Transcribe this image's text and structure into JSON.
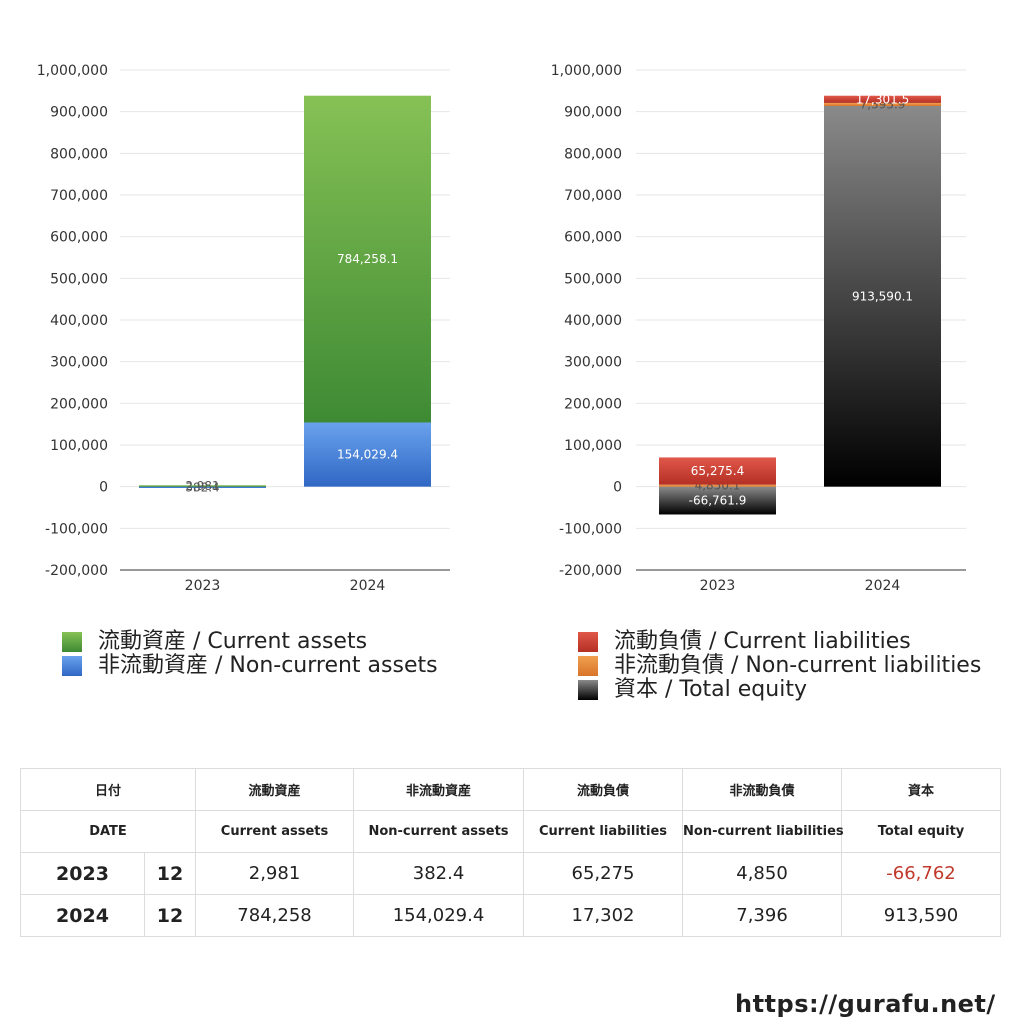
{
  "colors": {
    "current_assets": [
      "#86c155",
      "#3e8a34"
    ],
    "non_current_assets": [
      "#6aa2ee",
      "#2f67c4"
    ],
    "current_liabilities": [
      "#e0584a",
      "#b42f24"
    ],
    "non_current_liabilities": [
      "#f0a050",
      "#d9742a"
    ],
    "total_equity": [
      "#8a8a8a",
      "#000000"
    ],
    "negative_text": "#c0392b"
  },
  "chart_data": [
    {
      "type": "bar",
      "stacked": true,
      "categories": [
        "2023",
        "2024"
      ],
      "ylim": [
        -200000,
        1000000
      ],
      "yticks": [
        1000000,
        900000,
        800000,
        700000,
        600000,
        500000,
        400000,
        300000,
        200000,
        100000,
        0,
        -100000,
        -200000
      ],
      "ytick_labels": [
        "1,000,000",
        "900,000",
        "800,000",
        "700,000",
        "600,000",
        "500,000",
        "400,000",
        "300,000",
        "200,000",
        "100,000",
        "0",
        "-100,000",
        "-200,000"
      ],
      "grid": true,
      "legend_position": "bottom",
      "series": [
        {
          "name": "非流動資産 / Non-current assets",
          "key": "non_current_assets",
          "values": [
            382.4,
            154029.4
          ],
          "labels": [
            "382.4",
            "154,029.4"
          ]
        },
        {
          "name": "流動資産 / Current assets",
          "key": "current_assets",
          "values": [
            2981,
            784258.1
          ],
          "labels": [
            "2,981",
            "784,258.1"
          ]
        }
      ]
    },
    {
      "type": "bar",
      "stacked": true,
      "categories": [
        "2023",
        "2024"
      ],
      "ylim": [
        -200000,
        1000000
      ],
      "yticks": [
        1000000,
        900000,
        800000,
        700000,
        600000,
        500000,
        400000,
        300000,
        200000,
        100000,
        0,
        -100000,
        -200000
      ],
      "ytick_labels": [
        "1,000,000",
        "900,000",
        "800,000",
        "700,000",
        "600,000",
        "500,000",
        "400,000",
        "300,000",
        "200,000",
        "100,000",
        "0",
        "-100,000",
        "-200,000"
      ],
      "grid": true,
      "legend_position": "bottom",
      "series": [
        {
          "name": "資本 / Total equity",
          "key": "total_equity",
          "values": [
            -66761.9,
            913590.1
          ],
          "labels": [
            "-66,761.9",
            "913,590.1"
          ]
        },
        {
          "name": "非流動負債 / Non-current liabilities",
          "key": "non_current_liabilities",
          "values": [
            4850.1,
            7395.9
          ],
          "labels": [
            "4,850.1",
            "7,395.9"
          ]
        },
        {
          "name": "流動負債 / Current liabilities",
          "key": "current_liabilities",
          "values": [
            65275.4,
            17301.5
          ],
          "labels": [
            "65,275.4",
            "17,301.5"
          ]
        }
      ]
    }
  ],
  "legend_left": [
    {
      "label": "流動資産 / Current assets",
      "key": "current_assets"
    },
    {
      "label": "非流動資産 / Non-current assets",
      "key": "non_current_assets"
    }
  ],
  "legend_right": [
    {
      "label": "流動負債 / Current liabilities",
      "key": "current_liabilities"
    },
    {
      "label": "非流動負債 / Non-current liabilities",
      "key": "non_current_liabilities"
    },
    {
      "label": "資本 / Total equity",
      "key": "total_equity"
    }
  ],
  "table": {
    "head_jp": {
      "date": "日付",
      "ca": "流動資産",
      "nca": "非流動資産",
      "cl": "流動負債",
      "ncl": "非流動負債",
      "eq": "資本"
    },
    "head_en": {
      "date": "DATE",
      "ca": "Current assets",
      "nca": "Non-current assets",
      "cl": "Current liabilities",
      "ncl": "Non-current liabilities",
      "eq": "Total equity"
    },
    "rows": [
      {
        "year": "2023",
        "month": "12",
        "ca": "2,981",
        "nca": "382.4",
        "cl": "65,275",
        "ncl": "4,850",
        "eq": "-66,762"
      },
      {
        "year": "2024",
        "month": "12",
        "ca": "784,258",
        "nca": "154,029.4",
        "cl": "17,302",
        "ncl": "7,396",
        "eq": "913,590"
      }
    ]
  },
  "site": "https://gurafu.net/"
}
